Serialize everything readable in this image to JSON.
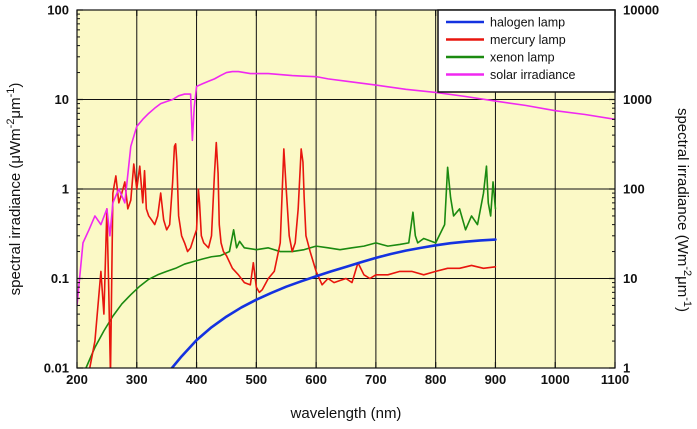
{
  "chart_data": {
    "type": "line",
    "x_label": "wavelength (nm)",
    "y_label_left": {
      "text": "spectral irradiance (μWm",
      "sup1": "-2",
      "mid": "μm",
      "sup2": "-1",
      "end": ")"
    },
    "y_label_right": {
      "text": "spectral irradiance (Wm",
      "sup1": "-2",
      "mid": "μm",
      "sup2": "-1",
      "end": ")"
    },
    "x_range": [
      200,
      1100
    ],
    "x_ticks": [
      200,
      300,
      400,
      500,
      600,
      700,
      800,
      900,
      1000,
      1100
    ],
    "x_tick_labels": [
      "200",
      "300",
      "400",
      "500",
      "600",
      "700",
      "800",
      "900",
      "1000",
      "1100"
    ],
    "y_scale": "log",
    "y_range": [
      0.01,
      100
    ],
    "y_ticks": [
      0.01,
      0.1,
      1,
      10,
      100
    ],
    "y_tick_labels": [
      "0.01",
      "0.1",
      "1",
      "10",
      "100"
    ],
    "y2_range": [
      1,
      10000
    ],
    "y2_tick_labels": [
      "1",
      "10",
      "100",
      "1000",
      "10000"
    ],
    "grid": true,
    "legend_position": "top-right",
    "colors": {
      "plot_background": "#fbf9c6",
      "grid": "#111111"
    },
    "series": [
      {
        "name": "halogen lamp",
        "color": "#1432e0",
        "x": [
          350,
          375,
          400,
          425,
          450,
          475,
          500,
          525,
          550,
          575,
          600,
          625,
          650,
          675,
          700,
          725,
          750,
          775,
          800,
          825,
          850,
          875,
          900
        ],
        "y": [
          0.0085,
          0.0135,
          0.0205,
          0.0285,
          0.0375,
          0.0475,
          0.058,
          0.069,
          0.081,
          0.093,
          0.106,
          0.12,
          0.135,
          0.152,
          0.17,
          0.188,
          0.205,
          0.22,
          0.235,
          0.248,
          0.258,
          0.266,
          0.272
        ]
      },
      {
        "name": "mercury lamp",
        "color": "#e8160e",
        "x": [
          220,
          230,
          240,
          245,
          250,
          253,
          256,
          260,
          265,
          270,
          275,
          280,
          285,
          290,
          295,
          300,
          305,
          310,
          313,
          316,
          320,
          325,
          330,
          335,
          340,
          345,
          350,
          355,
          360,
          363,
          365,
          367,
          370,
          375,
          380,
          385,
          390,
          395,
          400,
          403,
          405,
          408,
          412,
          420,
          425,
          430,
          433,
          436,
          438,
          441,
          445,
          450,
          460,
          470,
          480,
          490,
          495,
          500,
          505,
          510,
          520,
          530,
          540,
          546,
          550,
          555,
          560,
          565,
          570,
          575,
          578,
          580,
          583,
          590,
          600,
          610,
          620,
          630,
          640,
          650,
          660,
          670,
          680,
          690,
          700,
          720,
          740,
          760,
          780,
          800,
          820,
          840,
          860,
          880,
          900
        ],
        "y": [
          0.009,
          0.02,
          0.12,
          0.04,
          0.6,
          0.08,
          0.0085,
          0.9,
          1.4,
          0.7,
          0.9,
          1.2,
          0.6,
          0.75,
          1.9,
          1.0,
          1.8,
          0.7,
          1.6,
          0.6,
          0.5,
          0.45,
          0.4,
          0.5,
          0.9,
          0.45,
          0.35,
          0.4,
          1.2,
          3.0,
          3.2,
          2.0,
          0.5,
          0.3,
          0.25,
          0.2,
          0.22,
          0.28,
          0.35,
          1.0,
          0.7,
          0.3,
          0.25,
          0.22,
          0.3,
          1.5,
          3.3,
          1.5,
          0.4,
          0.25,
          0.2,
          0.18,
          0.13,
          0.11,
          0.09,
          0.085,
          0.15,
          0.08,
          0.07,
          0.075,
          0.1,
          0.12,
          0.25,
          2.8,
          1.0,
          0.3,
          0.2,
          0.25,
          0.6,
          2.8,
          2.0,
          0.8,
          0.3,
          0.2,
          0.12,
          0.085,
          0.1,
          0.09,
          0.095,
          0.1,
          0.09,
          0.15,
          0.11,
          0.1,
          0.11,
          0.11,
          0.12,
          0.12,
          0.11,
          0.12,
          0.13,
          0.13,
          0.14,
          0.13,
          0.135
        ]
      },
      {
        "name": "xenon lamp",
        "color": "#1b8a10",
        "x": [
          215,
          230,
          245,
          260,
          275,
          290,
          305,
          320,
          335,
          350,
          365,
          380,
          395,
          410,
          425,
          440,
          455,
          462,
          467,
          472,
          480,
          500,
          520,
          540,
          560,
          580,
          600,
          620,
          640,
          660,
          680,
          700,
          720,
          740,
          755,
          762,
          766,
          770,
          780,
          800,
          815,
          820,
          825,
          830,
          840,
          850,
          860,
          870,
          880,
          885,
          888,
          892,
          896,
          900
        ],
        "y": [
          0.01,
          0.017,
          0.026,
          0.038,
          0.052,
          0.066,
          0.082,
          0.098,
          0.11,
          0.12,
          0.13,
          0.145,
          0.155,
          0.165,
          0.175,
          0.18,
          0.2,
          0.35,
          0.22,
          0.26,
          0.22,
          0.21,
          0.22,
          0.2,
          0.2,
          0.21,
          0.23,
          0.22,
          0.21,
          0.22,
          0.23,
          0.25,
          0.23,
          0.24,
          0.25,
          0.55,
          0.3,
          0.25,
          0.28,
          0.25,
          0.4,
          1.75,
          0.8,
          0.5,
          0.6,
          0.35,
          0.5,
          0.4,
          0.9,
          1.8,
          0.7,
          0.5,
          1.2,
          0.6
        ]
      },
      {
        "name": "solar irradiance",
        "color": "#f028f0",
        "x": [
          200,
          210,
          220,
          230,
          240,
          250,
          255,
          260,
          270,
          280,
          290,
          300,
          310,
          320,
          330,
          340,
          350,
          360,
          370,
          380,
          390,
          393,
          396,
          400,
          410,
          420,
          430,
          440,
          450,
          460,
          470,
          480,
          490,
          500,
          520,
          540,
          560,
          580,
          600,
          620,
          650,
          700,
          750,
          800,
          850,
          900,
          950,
          1000,
          1050,
          1100
        ],
        "y": [
          0.05,
          0.25,
          0.35,
          0.5,
          0.4,
          0.6,
          0.3,
          0.7,
          1.0,
          0.7,
          3.0,
          5.0,
          6.0,
          7.0,
          8.0,
          9.0,
          9.5,
          10.0,
          11.0,
          11.5,
          11.5,
          3.5,
          8.0,
          14.0,
          15.0,
          16.0,
          17.0,
          18.5,
          20.0,
          20.5,
          20.5,
          20.0,
          19.5,
          19.5,
          19.5,
          19.0,
          18.5,
          18.2,
          18.0,
          17.0,
          16.0,
          14.5,
          13.0,
          12.0,
          10.8,
          9.6,
          8.6,
          7.5,
          6.8,
          6.0
        ]
      }
    ]
  }
}
